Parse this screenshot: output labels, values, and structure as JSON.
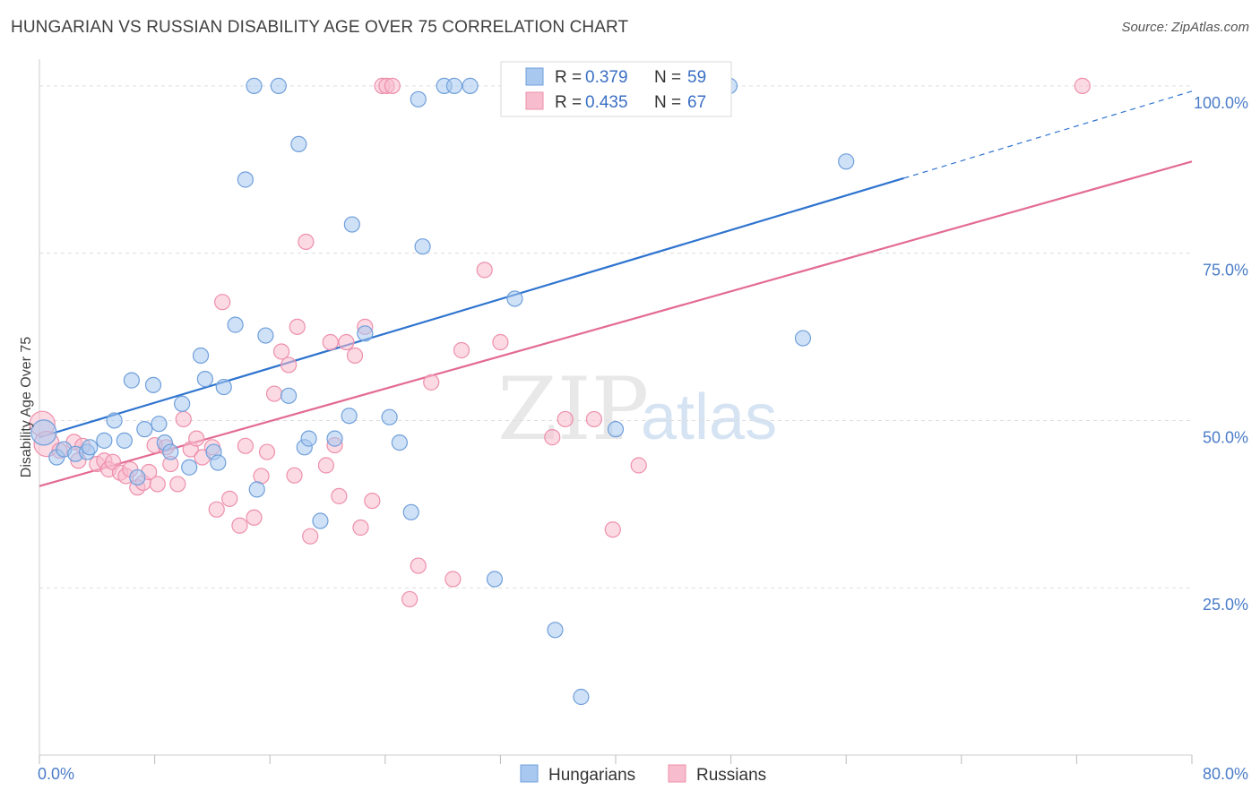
{
  "title": "HUNGARIAN VS RUSSIAN DISABILITY AGE OVER 75 CORRELATION CHART",
  "source": "Source: ZipAtlas.com",
  "watermark": {
    "zip": "ZIP",
    "atlas": "atlas"
  },
  "colors": {
    "hungarian_fill": "#a8c8ef",
    "hungarian_stroke": "#6f9fdb",
    "hungarian_line": "#2f74cf",
    "russian_fill": "#f7bccd",
    "russian_stroke": "#ee8fab",
    "russian_line": "#e36b93",
    "grid": "#dddddd",
    "tick_text": "#4a7cc8"
  },
  "legend_box": {
    "rows": [
      {
        "r_label": "R = ",
        "r_value": "0.379",
        "n_label": "N = ",
        "n_value": "59"
      },
      {
        "r_label": "R = ",
        "r_value": "0.435",
        "n_label": "N = ",
        "n_value": "67"
      }
    ]
  },
  "bottom_legend": {
    "hungarians": "Hungarians",
    "russians": "Russians"
  },
  "chart_data": {
    "type": "scatter",
    "title": "HUNGARIAN VS RUSSIAN DISABILITY AGE OVER 75 CORRELATION CHART",
    "ylabel": "Disability Age Over 75",
    "xlabel": "",
    "xlim": [
      0,
      80
    ],
    "ylim": [
      0,
      104
    ],
    "x_tick_labels": [
      {
        "value": 0,
        "label": "0.0%"
      },
      {
        "value": 80,
        "label": "80.0%"
      }
    ],
    "y_tick_labels": [
      {
        "value": 100,
        "label": "100.0%"
      },
      {
        "value": 75,
        "label": "75.0%"
      },
      {
        "value": 50,
        "label": "50.0%"
      },
      {
        "value": 25,
        "label": "25.0%"
      }
    ],
    "gridlines_y": [
      100,
      75,
      50,
      25
    ],
    "legend_position": "top-center",
    "series": [
      {
        "name": "Hungarians",
        "r": 0.379,
        "n": 59,
        "trend": {
          "x0": 0,
          "y0": 47.5,
          "x1": 60,
          "y1": 86.2,
          "dashed_to_x": 80,
          "dashed_to_y": 99.2
        },
        "points": [
          [
            0.3,
            48.2
          ],
          [
            1.2,
            44.5
          ],
          [
            1.7,
            45.7
          ],
          [
            2.5,
            45.0
          ],
          [
            3.3,
            45.3
          ],
          [
            3.5,
            46.0
          ],
          [
            4.5,
            47.0
          ],
          [
            5.2,
            50.0
          ],
          [
            5.9,
            47.0
          ],
          [
            6.4,
            56.0
          ],
          [
            6.8,
            41.5
          ],
          [
            7.3,
            48.7
          ],
          [
            7.9,
            55.3
          ],
          [
            8.3,
            49.5
          ],
          [
            8.7,
            46.7
          ],
          [
            9.1,
            45.3
          ],
          [
            9.9,
            52.5
          ],
          [
            10.4,
            43.0
          ],
          [
            11.2,
            59.7
          ],
          [
            11.5,
            56.2
          ],
          [
            12.1,
            45.3
          ],
          [
            12.4,
            43.7
          ],
          [
            12.8,
            55.0
          ],
          [
            13.6,
            64.3
          ],
          [
            14.3,
            86.0
          ],
          [
            14.9,
            100.0
          ],
          [
            15.1,
            39.7
          ],
          [
            15.7,
            62.7
          ],
          [
            16.6,
            100.0
          ],
          [
            17.3,
            53.7
          ],
          [
            18.0,
            91.3
          ],
          [
            18.4,
            46.0
          ],
          [
            18.7,
            47.3
          ],
          [
            19.5,
            35.0
          ],
          [
            20.5,
            47.3
          ],
          [
            21.5,
            50.7
          ],
          [
            21.7,
            79.3
          ],
          [
            22.6,
            63.0
          ],
          [
            24.3,
            50.5
          ],
          [
            25.0,
            46.7
          ],
          [
            25.8,
            36.3
          ],
          [
            26.3,
            98.0
          ],
          [
            26.6,
            76.0
          ],
          [
            28.1,
            100.0
          ],
          [
            28.8,
            100.0
          ],
          [
            29.9,
            100.0
          ],
          [
            31.6,
            26.3
          ],
          [
            33.0,
            68.2
          ],
          [
            35.8,
            18.7
          ],
          [
            37.6,
            8.7
          ],
          [
            40.0,
            48.7
          ],
          [
            47.9,
            100.0
          ],
          [
            53.0,
            62.3
          ],
          [
            56.0,
            88.7
          ]
        ]
      },
      {
        "name": "Russians",
        "r": 0.435,
        "n": 67,
        "trend": {
          "x0": 0,
          "y0": 40.2,
          "x1": 80,
          "y1": 88.7
        },
        "points": [
          [
            0.2,
            49.5
          ],
          [
            0.5,
            46.5
          ],
          [
            1.4,
            45.5
          ],
          [
            2.4,
            46.8
          ],
          [
            2.7,
            44.0
          ],
          [
            3.0,
            46.2
          ],
          [
            4.0,
            43.5
          ],
          [
            4.5,
            44.0
          ],
          [
            4.8,
            42.7
          ],
          [
            5.1,
            43.8
          ],
          [
            5.6,
            42.2
          ],
          [
            6.0,
            41.7
          ],
          [
            6.3,
            42.7
          ],
          [
            6.8,
            40.0
          ],
          [
            7.2,
            40.7
          ],
          [
            7.6,
            42.3
          ],
          [
            8.0,
            46.3
          ],
          [
            8.2,
            40.5
          ],
          [
            8.8,
            46.0
          ],
          [
            9.1,
            43.5
          ],
          [
            9.6,
            40.5
          ],
          [
            10.0,
            50.2
          ],
          [
            10.5,
            45.7
          ],
          [
            10.9,
            47.3
          ],
          [
            11.3,
            44.5
          ],
          [
            12.0,
            46.0
          ],
          [
            12.3,
            36.7
          ],
          [
            12.7,
            67.7
          ],
          [
            13.2,
            38.3
          ],
          [
            13.9,
            34.3
          ],
          [
            14.3,
            46.2
          ],
          [
            14.9,
            35.5
          ],
          [
            15.4,
            41.7
          ],
          [
            15.8,
            45.3
          ],
          [
            16.3,
            54.0
          ],
          [
            16.8,
            60.3
          ],
          [
            17.3,
            58.3
          ],
          [
            17.7,
            41.8
          ],
          [
            17.9,
            64.0
          ],
          [
            18.5,
            76.7
          ],
          [
            18.8,
            32.7
          ],
          [
            19.9,
            43.3
          ],
          [
            20.2,
            61.7
          ],
          [
            20.5,
            46.3
          ],
          [
            20.8,
            38.7
          ],
          [
            21.3,
            61.7
          ],
          [
            21.9,
            59.7
          ],
          [
            22.3,
            34.0
          ],
          [
            22.6,
            64.0
          ],
          [
            23.1,
            38.0
          ],
          [
            23.8,
            100.0
          ],
          [
            24.1,
            100.0
          ],
          [
            24.5,
            100.0
          ],
          [
            25.7,
            23.3
          ],
          [
            26.3,
            28.3
          ],
          [
            27.2,
            55.7
          ],
          [
            28.7,
            26.3
          ],
          [
            29.3,
            60.5
          ],
          [
            30.9,
            72.5
          ],
          [
            32.0,
            61.7
          ],
          [
            35.6,
            47.5
          ],
          [
            36.5,
            50.2
          ],
          [
            38.5,
            50.2
          ],
          [
            39.8,
            33.7
          ],
          [
            41.6,
            43.3
          ],
          [
            72.4,
            100.0
          ]
        ]
      }
    ]
  }
}
